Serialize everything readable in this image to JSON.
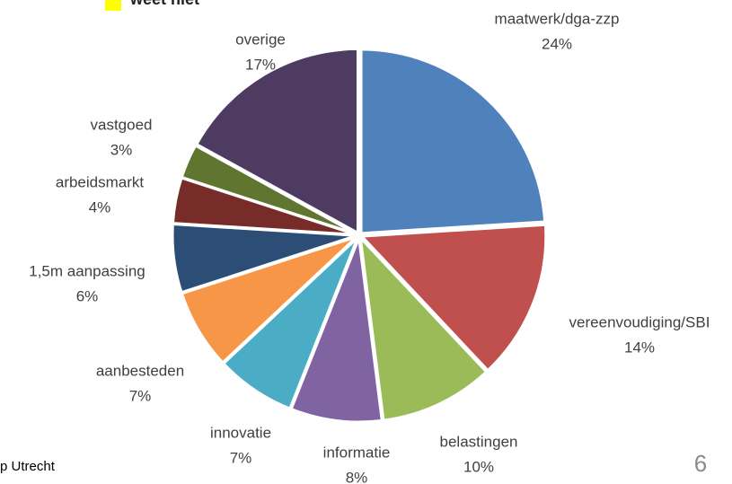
{
  "header": {
    "legend_text": "weet niet"
  },
  "footer": {
    "text": "p Utrecht",
    "page_number": "6"
  },
  "chart_data": {
    "type": "pie",
    "categories": [
      "maatwerk/dga-zzp",
      "vereenvoudiging/SBI",
      "belastingen",
      "informatie",
      "innovatie",
      "aanbesteden",
      "1,5m aanpassing",
      "arbeidsmarkt",
      "vastgoed",
      "overige"
    ],
    "values": [
      24,
      14,
      10,
      8,
      7,
      7,
      6,
      4,
      3,
      17
    ],
    "value_labels": [
      "24%",
      "14%",
      "10%",
      "8%",
      "7%",
      "7%",
      "6%",
      "4%",
      "3%",
      "17%"
    ],
    "colors": [
      "#4f81bd",
      "#c0504d",
      "#9bbb59",
      "#8064a2",
      "#4bacc6",
      "#f79646",
      "#2c4d75",
      "#772c2a",
      "#5f7530",
      "#4d3b62"
    ]
  }
}
